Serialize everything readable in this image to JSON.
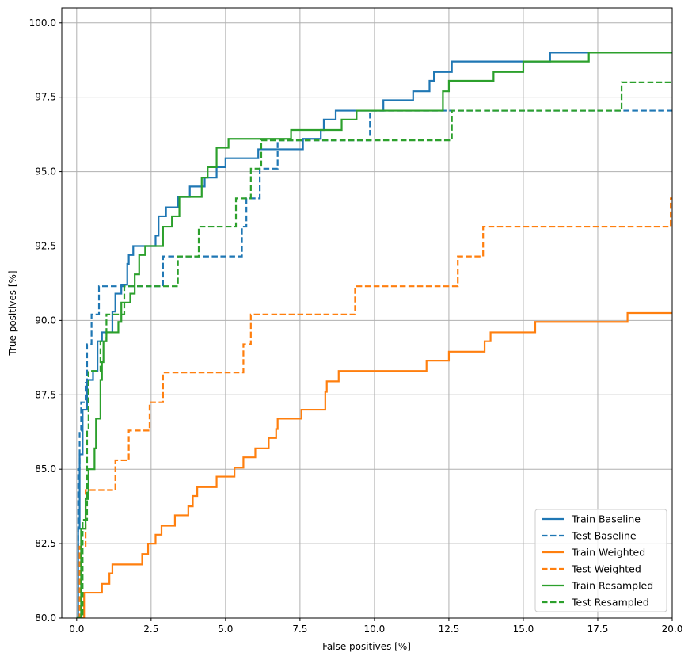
{
  "chart_data": {
    "type": "line",
    "drawstyle": "steps",
    "xlabel": "False positives [%]",
    "ylabel": "True positives [%]",
    "xlim": [
      -0.5,
      20
    ],
    "ylim": [
      80,
      100.5
    ],
    "xticks": [
      0,
      2.5,
      5,
      7.5,
      10,
      12.5,
      15,
      17.5,
      20
    ],
    "xtick_labels": [
      "0.0",
      "2.5",
      "5.0",
      "7.5",
      "10.0",
      "12.5",
      "15.0",
      "17.5",
      "20.0"
    ],
    "yticks": [
      80,
      82.5,
      85,
      87.5,
      90,
      92.5,
      95,
      97.5,
      100
    ],
    "ytick_labels": [
      "80.0",
      "82.5",
      "85.0",
      "87.5",
      "90.0",
      "92.5",
      "95.0",
      "97.5",
      "100.0"
    ],
    "grid": true,
    "legend_placement": "bottom-right",
    "series": [
      {
        "name": "Train Baseline",
        "color": "#1f77b4",
        "dash": false,
        "points": [
          [
            0,
            80
          ],
          [
            0.05,
            83
          ],
          [
            0.1,
            85.5
          ],
          [
            0.2,
            87
          ],
          [
            0.35,
            88
          ],
          [
            0.55,
            88.3
          ],
          [
            0.7,
            89.3
          ],
          [
            0.85,
            89.6
          ],
          [
            1.2,
            90.3
          ],
          [
            1.3,
            90.9
          ],
          [
            1.5,
            91.2
          ],
          [
            1.7,
            91.9
          ],
          [
            1.75,
            92.2
          ],
          [
            1.9,
            92.5
          ],
          [
            2.65,
            92.85
          ],
          [
            2.75,
            93.5
          ],
          [
            3.0,
            93.8
          ],
          [
            3.4,
            94.15
          ],
          [
            3.8,
            94.5
          ],
          [
            4.3,
            94.8
          ],
          [
            4.7,
            95.15
          ],
          [
            5.0,
            95.45
          ],
          [
            6.1,
            95.75
          ],
          [
            7.6,
            96.1
          ],
          [
            8.2,
            96.4
          ],
          [
            8.3,
            96.75
          ],
          [
            8.7,
            97.05
          ],
          [
            10.3,
            97.4
          ],
          [
            11.3,
            97.7
          ],
          [
            11.85,
            98.05
          ],
          [
            12.0,
            98.35
          ],
          [
            12.6,
            98.7
          ],
          [
            15.9,
            99.0
          ],
          [
            20,
            99.0
          ]
        ]
      },
      {
        "name": "Test Baseline",
        "color": "#1f77b4",
        "dash": true,
        "points": [
          [
            0,
            80
          ],
          [
            0.05,
            85
          ],
          [
            0.1,
            86.3
          ],
          [
            0.15,
            87.25
          ],
          [
            0.3,
            87.9
          ],
          [
            0.35,
            89.2
          ],
          [
            0.5,
            90.2
          ],
          [
            0.75,
            91.15
          ],
          [
            2.9,
            92.15
          ],
          [
            5.55,
            93.15
          ],
          [
            5.7,
            94.1
          ],
          [
            6.15,
            95.1
          ],
          [
            6.75,
            96.05
          ],
          [
            9.85,
            97.05
          ],
          [
            20,
            97.05
          ]
        ]
      },
      {
        "name": "Train Weighted",
        "color": "#ff7f0e",
        "dash": false,
        "points": [
          [
            0.2,
            80
          ],
          [
            0.25,
            80.85
          ],
          [
            0.85,
            81.15
          ],
          [
            1.1,
            81.5
          ],
          [
            1.2,
            81.8
          ],
          [
            2.2,
            82.15
          ],
          [
            2.4,
            82.5
          ],
          [
            2.65,
            82.8
          ],
          [
            2.85,
            83.1
          ],
          [
            3.3,
            83.45
          ],
          [
            3.75,
            83.75
          ],
          [
            3.9,
            84.1
          ],
          [
            4.05,
            84.4
          ],
          [
            4.7,
            84.75
          ],
          [
            5.3,
            85.05
          ],
          [
            5.6,
            85.4
          ],
          [
            6.0,
            85.7
          ],
          [
            6.45,
            86.05
          ],
          [
            6.7,
            86.35
          ],
          [
            6.75,
            86.7
          ],
          [
            7.55,
            87.0
          ],
          [
            8.35,
            87.6
          ],
          [
            8.4,
            87.95
          ],
          [
            8.8,
            88.3
          ],
          [
            11.75,
            88.65
          ],
          [
            12.5,
            88.95
          ],
          [
            13.7,
            89.3
          ],
          [
            13.9,
            89.6
          ],
          [
            15.4,
            89.95
          ],
          [
            18.5,
            90.25
          ],
          [
            20,
            90.25
          ]
        ]
      },
      {
        "name": "Test Weighted",
        "color": "#ff7f0e",
        "dash": true,
        "points": [
          [
            0.05,
            80
          ],
          [
            0.1,
            82.4
          ],
          [
            0.3,
            84.3
          ],
          [
            1.3,
            85.3
          ],
          [
            1.75,
            86.3
          ],
          [
            2.45,
            87.25
          ],
          [
            2.9,
            88.25
          ],
          [
            5.6,
            89.2
          ],
          [
            5.85,
            90.2
          ],
          [
            9.35,
            91.15
          ],
          [
            12.8,
            92.15
          ],
          [
            13.65,
            93.15
          ],
          [
            19.95,
            94.1
          ],
          [
            20,
            94.1
          ]
        ]
      },
      {
        "name": "Train Resampled",
        "color": "#2ca02c",
        "dash": false,
        "points": [
          [
            0,
            80
          ],
          [
            0.15,
            83
          ],
          [
            0.3,
            84
          ],
          [
            0.4,
            85
          ],
          [
            0.6,
            85.7
          ],
          [
            0.65,
            86.7
          ],
          [
            0.8,
            88
          ],
          [
            0.85,
            88.6
          ],
          [
            0.9,
            89.3
          ],
          [
            1.0,
            89.6
          ],
          [
            1.4,
            89.95
          ],
          [
            1.5,
            90.6
          ],
          [
            1.8,
            90.9
          ],
          [
            1.95,
            91.55
          ],
          [
            2.1,
            92.2
          ],
          [
            2.3,
            92.5
          ],
          [
            2.9,
            93.15
          ],
          [
            3.2,
            93.5
          ],
          [
            3.45,
            94.15
          ],
          [
            4.2,
            94.8
          ],
          [
            4.4,
            95.15
          ],
          [
            4.7,
            95.8
          ],
          [
            5.1,
            96.1
          ],
          [
            7.2,
            96.4
          ],
          [
            8.9,
            96.75
          ],
          [
            9.4,
            97.05
          ],
          [
            12.3,
            97.7
          ],
          [
            12.5,
            98.05
          ],
          [
            14.0,
            98.35
          ],
          [
            15.0,
            98.7
          ],
          [
            17.2,
            99.0
          ],
          [
            20,
            99.0
          ]
        ]
      },
      {
        "name": "Test Resampled",
        "color": "#2ca02c",
        "dash": true,
        "points": [
          [
            0,
            80
          ],
          [
            0.2,
            83.3
          ],
          [
            0.35,
            86.3
          ],
          [
            0.4,
            88.3
          ],
          [
            0.8,
            89.3
          ],
          [
            1.0,
            90.2
          ],
          [
            1.6,
            91.15
          ],
          [
            3.4,
            92.15
          ],
          [
            4.1,
            93.15
          ],
          [
            5.35,
            94.1
          ],
          [
            5.85,
            95.1
          ],
          [
            6.2,
            96.05
          ],
          [
            12.6,
            97.05
          ],
          [
            18.3,
            98.0
          ],
          [
            20,
            98.0
          ]
        ]
      }
    ]
  }
}
